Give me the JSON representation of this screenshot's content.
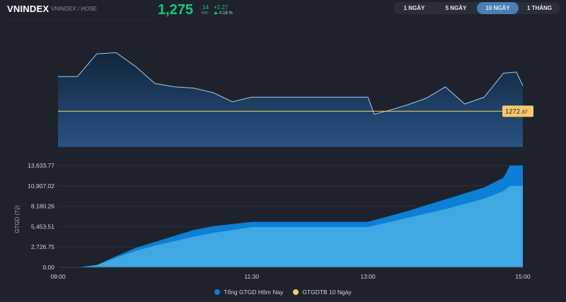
{
  "header": {
    "symbol": "VNINDEX",
    "exchange": "VNINDEX / HOSE",
    "price_main": "1,275",
    "price_decimal": ".14",
    "price_unit": "VND",
    "change_abs": "+2.27",
    "change_pct": "0.18 %"
  },
  "range_tabs": [
    {
      "label": "1 NGÀY",
      "active": false
    },
    {
      "label": "5 NGÀY",
      "active": false
    },
    {
      "label": "10 NGÀY",
      "active": true
    },
    {
      "label": "1 THÁNG",
      "active": false
    }
  ],
  "colors": {
    "up": "#0ecb81",
    "price_line": "#a9c7e8",
    "ref_line": "#f5d769",
    "volume_today": "#0c7fd6",
    "volume_avg10": "#3fa8e2",
    "badge": "#f7c96a"
  },
  "price_panel": {
    "reference_label_int": "1272",
    "reference_label_dec": ".87"
  },
  "chart_data": [
    {
      "type": "line",
      "title": "VNINDEX",
      "x": [
        "09:00",
        "09:15",
        "09:30",
        "09:45",
        "10:00",
        "10:15",
        "10:30",
        "10:45",
        "11:00",
        "11:15",
        "11:30",
        "11:45",
        "12:00",
        "12:15",
        "12:30",
        "12:45",
        "13:00",
        "13:05",
        "13:15",
        "13:30",
        "13:45",
        "14:00",
        "14:15",
        "14:30",
        "14:45",
        "14:55",
        "15:00"
      ],
      "series": [
        {
          "values": [
            1275.9,
            1275.9,
            1277.9,
            1278.0,
            1276.8,
            1275.3,
            1275.0,
            1274.9,
            1274.5,
            1273.7,
            1274.1,
            1274.1,
            1274.1,
            1274.1,
            1274.1,
            1274.1,
            1274.1,
            1272.6,
            1272.9,
            1273.4,
            1274.0,
            1275.0,
            1273.5,
            1274.1,
            1276.2,
            1276.3,
            1275.1
          ]
        }
      ],
      "reference_value": 1272.87,
      "xlim": [
        "09:00",
        "15:00"
      ]
    },
    {
      "type": "area",
      "ylabel": "GTGD (Tỷ)",
      "x": [
        "09:00",
        "09:15",
        "09:30",
        "09:45",
        "10:00",
        "10:15",
        "10:30",
        "10:45",
        "11:00",
        "11:15",
        "11:30",
        "11:45",
        "12:00",
        "12:15",
        "12:30",
        "12:45",
        "13:00",
        "13:15",
        "13:30",
        "13:45",
        "14:00",
        "14:15",
        "14:30",
        "14:45",
        "14:50",
        "15:00"
      ],
      "x_ticks": [
        "09:00",
        "11:30",
        "13:00",
        "15:00"
      ],
      "y_ticks": [
        "0.00",
        "2,726.75",
        "5,453.51",
        "8,180.26",
        "10,907.02",
        "13,633.77"
      ],
      "ylim": [
        0,
        13633.77
      ],
      "series": [
        {
          "name": "Tổng GTGD Hôm Nay",
          "values": [
            0,
            0,
            300,
            1500,
            2600,
            3400,
            4200,
            5000,
            5500,
            5800,
            6100,
            6100,
            6100,
            6100,
            6100,
            6100,
            6100,
            6800,
            7500,
            8300,
            9100,
            9900,
            10700,
            12000,
            13633.77,
            13633.77
          ]
        },
        {
          "name": "GTGDTB 10 Ngày",
          "values": [
            0,
            0,
            300,
            1300,
            2200,
            2900,
            3500,
            4100,
            4600,
            5000,
            5400,
            5400,
            5400,
            5400,
            5400,
            5400,
            5400,
            6000,
            6600,
            7200,
            7800,
            8500,
            9200,
            10200,
            10900,
            10907.02
          ]
        }
      ]
    }
  ]
}
